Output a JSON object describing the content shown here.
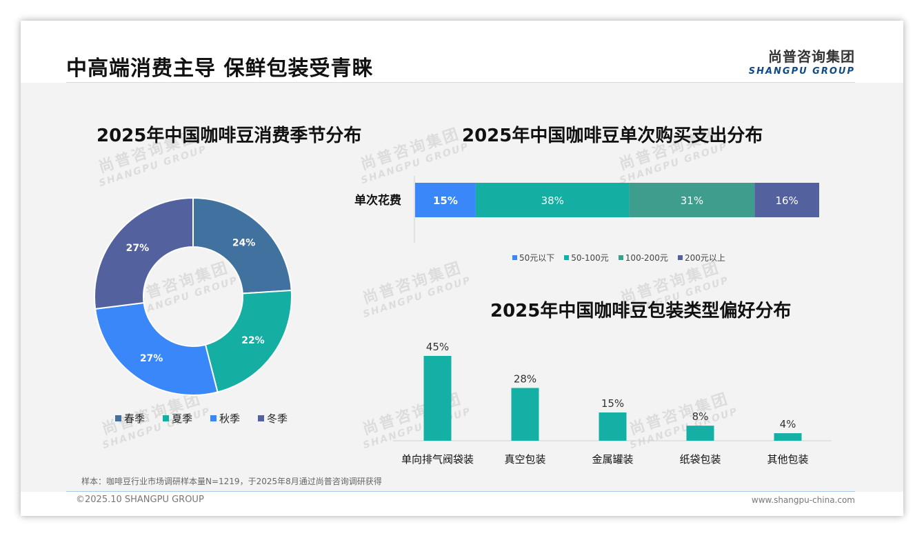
{
  "header": {
    "title": "中高端消费主导 保鲜包装受青睐",
    "logo_cn": "尚普咨询集团",
    "logo_en": "SHANGPU GROUP"
  },
  "watermark": {
    "cn": "尚普咨询集团",
    "en": "SHANGPU GROUP"
  },
  "footer": {
    "sample_note": "样本：咖啡豆行业市场调研样本量N=1219，于2025年8月通过尚普咨询调研获得",
    "copyright": "©2025.10 SHANGPU GROUP",
    "website": "www.shangpu-china.com"
  },
  "colors": {
    "spring": "#41729f",
    "summer": "#14aea3",
    "autumn": "#3a87fa",
    "winter": "#53629f",
    "spend_1": "#3a87fa",
    "spend_2": "#14aea3",
    "spend_3": "#3f9d8e",
    "spend_4": "#53629f",
    "packaging": "#14b0a5"
  },
  "chart_data": [
    {
      "type": "pie",
      "title": "2025年中国咖啡豆消费季节分布",
      "categories": [
        "春季",
        "夏季",
        "秋季",
        "冬季"
      ],
      "values": [
        24,
        22,
        27,
        27
      ],
      "labels": [
        "24%",
        "22%",
        "27%",
        "27%"
      ],
      "legend_position": "bottom"
    },
    {
      "type": "bar",
      "orientation": "horizontal-stacked",
      "title": "2025年中国咖啡豆单次购买支出分布",
      "categories": [
        "单次花费"
      ],
      "series": [
        {
          "name": "50元以下",
          "values": [
            15
          ],
          "label": "15%"
        },
        {
          "name": "50-100元",
          "values": [
            38
          ],
          "label": "38%"
        },
        {
          "name": "100-200元",
          "values": [
            31
          ],
          "label": "31%"
        },
        {
          "name": "200元以上",
          "values": [
            16
          ],
          "label": "16%"
        }
      ],
      "legend_position": "bottom"
    },
    {
      "type": "bar",
      "title": "2025年中国咖啡豆包装类型偏好分布",
      "categories": [
        "单向排气阀袋装",
        "真空包装",
        "金属罐装",
        "纸袋包装",
        "其他包装"
      ],
      "values": [
        45,
        28,
        15,
        8,
        4
      ],
      "labels": [
        "45%",
        "28%",
        "15%",
        "8%",
        "4%"
      ],
      "ylim": [
        0,
        45
      ],
      "grid": false
    }
  ]
}
